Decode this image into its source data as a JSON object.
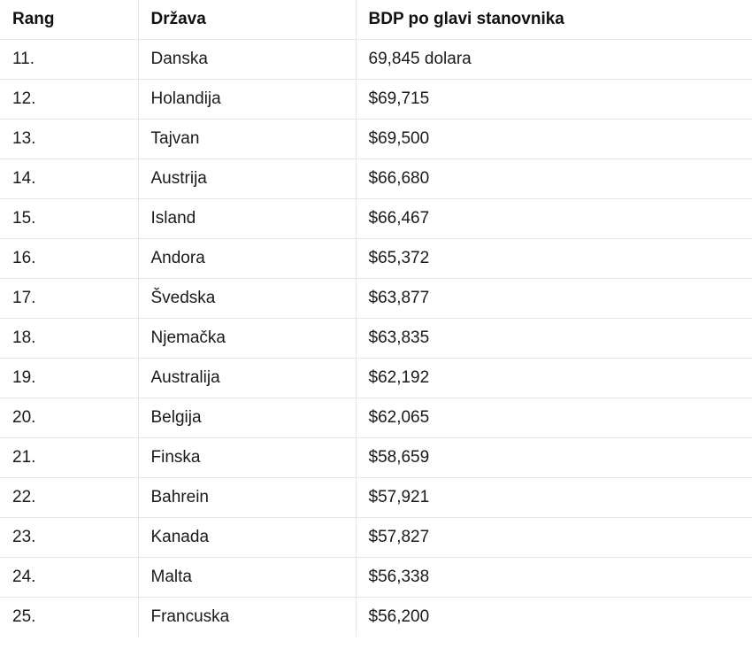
{
  "table": {
    "headers": {
      "rank": "Rang",
      "country": "Država",
      "gdp": "BDP po glavi stanovnika"
    },
    "rows": [
      {
        "rank": "11.",
        "country": "Danska",
        "gdp": "69,845 dolara"
      },
      {
        "rank": "12.",
        "country": "Holandija",
        "gdp": "$69,715"
      },
      {
        "rank": "13.",
        "country": "Tajvan",
        "gdp": "$69,500"
      },
      {
        "rank": "14.",
        "country": "Austrija",
        "gdp": "$66,680"
      },
      {
        "rank": "15.",
        "country": "Island",
        "gdp": "$66,467"
      },
      {
        "rank": "16.",
        "country": "Andora",
        "gdp": "$65,372"
      },
      {
        "rank": "17.",
        "country": "Švedska",
        "gdp": "$63,877"
      },
      {
        "rank": "18.",
        "country": "Njemačka",
        "gdp": "$63,835"
      },
      {
        "rank": "19.",
        "country": "Australija",
        "gdp": "$62,192"
      },
      {
        "rank": "20.",
        "country": "Belgija",
        "gdp": "$62,065"
      },
      {
        "rank": "21.",
        "country": "Finska",
        "gdp": "$58,659"
      },
      {
        "rank": "22.",
        "country": "Bahrein",
        "gdp": "$57,921"
      },
      {
        "rank": "23.",
        "country": "Kanada",
        "gdp": "$57,827"
      },
      {
        "rank": "24.",
        "country": "Malta",
        "gdp": "$56,338"
      },
      {
        "rank": "25.",
        "country": "Francuska",
        "gdp": "$56,200"
      }
    ]
  }
}
